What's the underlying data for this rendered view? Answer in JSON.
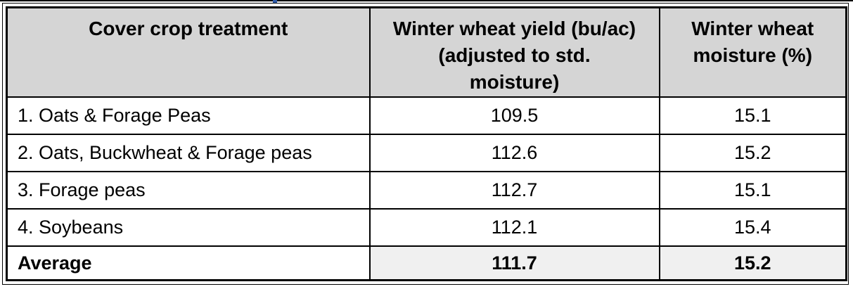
{
  "colors": {
    "header_bg": "#d5d5d5",
    "summary_bg": "#f0f0f0",
    "border": "#000000",
    "text": "#000000",
    "artifact_blue": "#2e5aa8"
  },
  "table": {
    "header": {
      "treatment": "Cover crop treatment",
      "yield_line1": "Winter wheat yield (bu/ac)",
      "yield_line2": "(adjusted to std.",
      "yield_line3": "moisture)",
      "moisture_line1": "Winter wheat",
      "moisture_line2": "moisture (%)"
    },
    "rows": [
      {
        "treatment": "1. Oats & Forage Peas",
        "yield": "109.5",
        "moisture": "15.1"
      },
      {
        "treatment": "2. Oats, Buckwheat & Forage peas",
        "yield": "112.6",
        "moisture": "15.2"
      },
      {
        "treatment": "3. Forage peas",
        "yield": "112.7",
        "moisture": "15.1"
      },
      {
        "treatment": "4. Soybeans",
        "yield": "112.1",
        "moisture": "15.4"
      }
    ],
    "summary": {
      "label": "Average",
      "yield": "111.7",
      "moisture": "15.2"
    }
  },
  "chart_data": {
    "type": "table",
    "columns": [
      "Cover crop treatment",
      "Winter wheat yield (bu/ac) (adjusted to std. moisture)",
      "Winter wheat moisture (%)"
    ],
    "rows": [
      [
        "1. Oats & Forage Peas",
        109.5,
        15.1
      ],
      [
        "2. Oats, Buckwheat & Forage peas",
        112.6,
        15.2
      ],
      [
        "3. Forage peas",
        112.7,
        15.1
      ],
      [
        "4. Soybeans",
        112.1,
        15.4
      ],
      [
        "Average",
        111.7,
        15.2
      ]
    ]
  }
}
